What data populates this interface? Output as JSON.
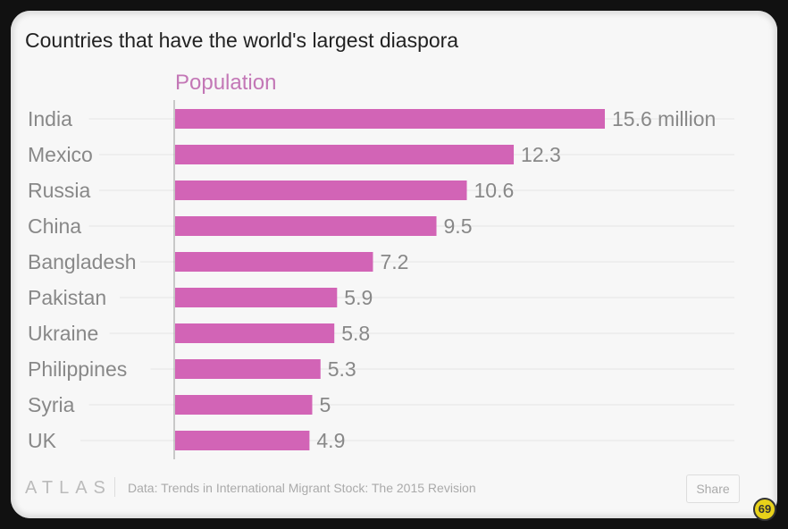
{
  "chart_data": {
    "type": "bar",
    "orientation": "horizontal",
    "title": "Countries that have the world's largest diaspora",
    "series_label": "Population",
    "categories": [
      "India",
      "Mexico",
      "Russia",
      "China",
      "Bangladesh",
      "Pakistan",
      "Ukraine",
      "Philippines",
      "Syria",
      "UK"
    ],
    "values": [
      15.6,
      12.3,
      10.6,
      9.5,
      7.2,
      5.9,
      5.8,
      5.3,
      5,
      4.9
    ],
    "value_labels": [
      "15.6 million",
      "12.3",
      "10.6",
      "9.5",
      "7.2",
      "5.9",
      "5.8",
      "5.3",
      "5",
      "4.9"
    ],
    "unit": "million",
    "xlim": [
      0,
      15.6
    ],
    "bar_color": "#d264b6",
    "grid": true
  },
  "footer": {
    "logo": "ATLAS",
    "source": "Data: Trends in International Migrant Stock: The 2015 Revision",
    "share_label": "Share"
  }
}
